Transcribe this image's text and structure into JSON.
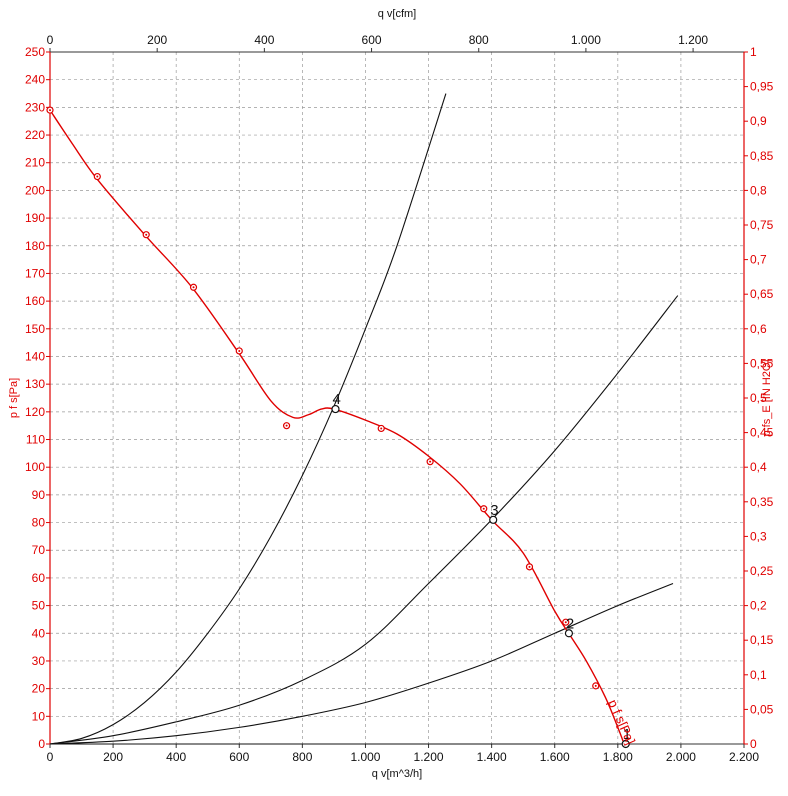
{
  "chart_data": {
    "type": "line",
    "x_bottom_axis": {
      "label": "q v[m^3/h]",
      "range": [
        0,
        2200
      ],
      "ticks": [
        0,
        200,
        400,
        600,
        800,
        1000,
        1200,
        1400,
        1600,
        1800,
        2000,
        2200
      ],
      "tick_labels": [
        "0",
        "200",
        "400",
        "600",
        "800",
        "1.000",
        "1.200",
        "1.400",
        "1.600",
        "1.800",
        "2.000",
        "2.200"
      ]
    },
    "x_top_axis": {
      "label": "q v[cfm]",
      "range": [
        0,
        1295
      ],
      "ticks": [
        0,
        200,
        400,
        600,
        800,
        1000,
        1200
      ],
      "tick_labels": [
        "0",
        "200",
        "400",
        "600",
        "800",
        "1.000",
        "1.200"
      ]
    },
    "y_left_axis": {
      "label": "p f s[Pa]",
      "range": [
        0,
        250
      ],
      "ticks": [
        0,
        10,
        20,
        30,
        40,
        50,
        60,
        70,
        80,
        90,
        100,
        110,
        120,
        130,
        140,
        150,
        160,
        170,
        180,
        190,
        200,
        210,
        220,
        230,
        240,
        250
      ],
      "tick_labels": [
        "0",
        "10",
        "20",
        "30",
        "40",
        "50",
        "60",
        "70",
        "80",
        "90",
        "100",
        "110",
        "120",
        "130",
        "140",
        "150",
        "160",
        "170",
        "180",
        "190",
        "200",
        "210",
        "220",
        "230",
        "240",
        "250"
      ]
    },
    "y_right_axis": {
      "label": "p fs_E [IN H2O]",
      "range": [
        0,
        1
      ],
      "ticks": [
        0,
        0.05,
        0.1,
        0.15,
        0.2,
        0.25,
        0.3,
        0.35,
        0.4,
        0.45,
        0.5,
        0.55,
        0.6,
        0.65,
        0.7,
        0.75,
        0.8,
        0.85,
        0.9,
        0.95,
        1
      ],
      "tick_labels": [
        "0",
        "0,05",
        "0,1",
        "0,15",
        "0,2",
        "0,25",
        "0,3",
        "0,35",
        "0,4",
        "0,45",
        "0,5",
        "0,55",
        "0,6",
        "0,65",
        "0,7",
        "0,75",
        "0,8",
        "0,85",
        "0,9",
        "0,95",
        "1"
      ]
    },
    "grid": true,
    "fan_curve": {
      "name": "p f s[Pa]",
      "color": "#e00000",
      "x": [
        0,
        70,
        150,
        300,
        450,
        600,
        700,
        770,
        820,
        860,
        900,
        1000,
        1100,
        1200,
        1300,
        1400,
        1500,
        1600,
        1650,
        1700,
        1760,
        1800,
        1820
      ],
      "y": [
        229,
        217,
        204,
        184,
        165,
        141,
        124,
        118,
        119,
        121,
        121,
        117,
        112,
        104,
        94,
        81,
        69,
        48,
        39,
        30,
        17,
        6,
        0
      ],
      "markers_x": [
        0,
        150,
        305,
        455,
        600,
        750,
        1050,
        1205,
        1375,
        1520,
        1635,
        1730
      ],
      "markers_y": [
        229,
        205,
        184,
        165,
        142,
        115,
        114,
        102,
        85,
        64,
        44,
        21
      ]
    },
    "system_curves": [
      {
        "color": "#111111",
        "x": [
          0,
          100,
          200,
          300,
          400,
          500,
          600,
          700,
          800,
          900,
          1000,
          1100,
          1255
        ],
        "y": [
          0,
          2,
          7,
          15,
          26,
          40,
          56,
          75,
          97,
          122,
          150,
          180,
          235
        ]
      },
      {
        "color": "#111111",
        "x": [
          0,
          200,
          400,
          600,
          800,
          1000,
          1200,
          1400,
          1600,
          1800,
          1990
        ],
        "y": [
          0,
          3,
          8,
          14,
          23,
          36,
          58,
          81,
          106,
          134,
          162
        ]
      },
      {
        "color": "#111111",
        "x": [
          0,
          200,
          400,
          600,
          800,
          1000,
          1200,
          1400,
          1600,
          1800,
          1975
        ],
        "y": [
          0,
          1,
          3,
          6,
          10,
          15,
          22,
          30,
          40,
          50,
          58
        ]
      },
      {
        "color": "#111111",
        "x": [
          0,
          1820
        ],
        "y": [
          0,
          0
        ]
      }
    ],
    "operating_points": [
      {
        "label": "1",
        "x": 1825,
        "y": 0
      },
      {
        "label": "2",
        "x": 1645,
        "y": 40
      },
      {
        "label": "3",
        "x": 1405,
        "y": 81
      },
      {
        "label": "4",
        "x": 905,
        "y": 121
      }
    ],
    "curve_tag": "p f s[Pa]"
  }
}
